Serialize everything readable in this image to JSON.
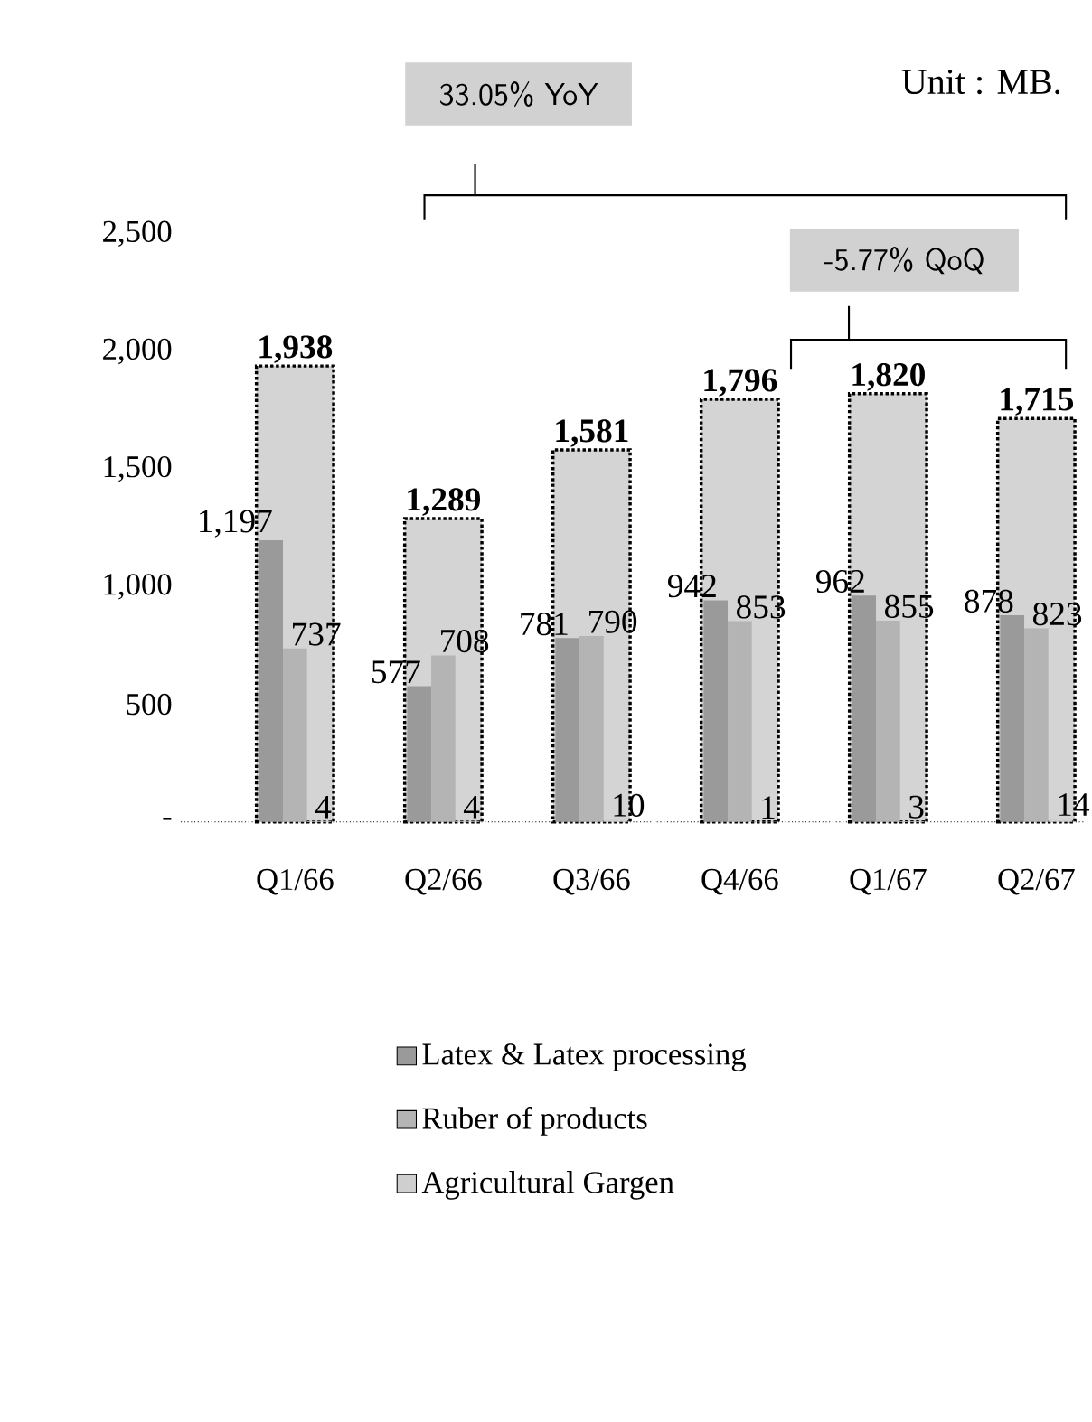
{
  "chart_data": {
    "type": "bar",
    "categories": [
      "Q1/66",
      "Q2/66",
      "Q3/66",
      "Q4/66",
      "Q1/67",
      "Q2/67"
    ],
    "series": [
      {
        "color": "#d4d4d4",
        "line_style": "dotted",
        "values": [
          1938,
          1289,
          1581,
          1796,
          1820,
          1715
        ],
        "value_labels": [
          "1,938",
          "1,289",
          "1,581",
          "1,796",
          "1,820",
          "1,715"
        ]
      },
      {
        "name": "Latex & Latex processing",
        "color": "#9a9a9a",
        "values": [
          1197,
          577,
          781,
          942,
          962,
          878
        ],
        "value_labels": [
          "1,197",
          "577",
          "781",
          "942",
          "962",
          "878"
        ]
      },
      {
        "name": "Ruber of products",
        "color": "#b4b4b4",
        "values": [
          737,
          708,
          790,
          853,
          855,
          823
        ],
        "value_labels": [
          "737",
          "708",
          "790",
          "853",
          "855",
          "823"
        ]
      },
      {
        "name": "Agricultural Gargen",
        "color": "#cfcfcf",
        "values": [
          4,
          4,
          10,
          1,
          3,
          14
        ],
        "value_labels": [
          "4",
          "4",
          "10",
          "1",
          "3",
          "14"
        ]
      }
    ],
    "ylim": [
      0,
      2500
    ],
    "yticks": [
      {
        "value": 0,
        "label": "-"
      },
      {
        "value": 500,
        "label": "500"
      },
      {
        "value": 1000,
        "label": "1,000"
      },
      {
        "value": 1500,
        "label": "1,500"
      },
      {
        "value": 2000,
        "label": "2,000"
      },
      {
        "value": 2500,
        "label": "2,500"
      }
    ],
    "legend": "bottom",
    "annotations": [
      "33.05% YoY",
      "-5.77% QoQ",
      "Unit : MB."
    ]
  }
}
